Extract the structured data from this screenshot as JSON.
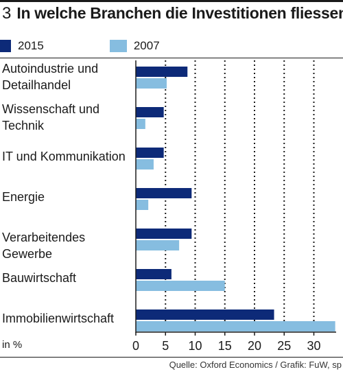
{
  "figure": {
    "number": "3",
    "title": "In welche Branchen die Investitionen fliessen",
    "unit": "in %",
    "source": "Quelle: Oxford Economics / Grafik: FuW, sp"
  },
  "colors": {
    "s2015": "#0d2a78",
    "s2007": "#86bde0"
  },
  "chart_data": {
    "type": "bar",
    "orientation": "horizontal",
    "title": "In welche Branchen die Investitionen fliessen",
    "xlabel": "in %",
    "ylabel": "",
    "xlim": [
      0,
      35
    ],
    "xticks": [
      0,
      5,
      10,
      15,
      20,
      25,
      30
    ],
    "grid": "vertical dotted",
    "legend": "top-left",
    "categories": [
      "Autoindustrie und Detailhandel",
      "Wissenschaft und Technik",
      "IT und Kommunikation",
      "Energie",
      "Verarbeitendes Gewerbe",
      "Bauwirtschaft",
      "Immobilienwirtschaft"
    ],
    "category_lines": [
      [
        "Autoindustrie und",
        "Detailhandel"
      ],
      [
        "Wissenschaft und",
        "Technik"
      ],
      [
        "IT und Kommunikation"
      ],
      [
        "Energie"
      ],
      [
        "Verarbeitendes Gewerbe"
      ],
      [
        "Bauwirtschaft"
      ],
      [
        "Immobilienwirtschaft"
      ]
    ],
    "series": [
      {
        "name": "2015",
        "values": [
          8.7,
          4.7,
          4.7,
          9.4,
          9.4,
          6.0,
          23.3
        ]
      },
      {
        "name": "2007",
        "values": [
          5.2,
          1.6,
          3.0,
          2.1,
          7.3,
          15.0,
          33.6
        ]
      }
    ]
  }
}
